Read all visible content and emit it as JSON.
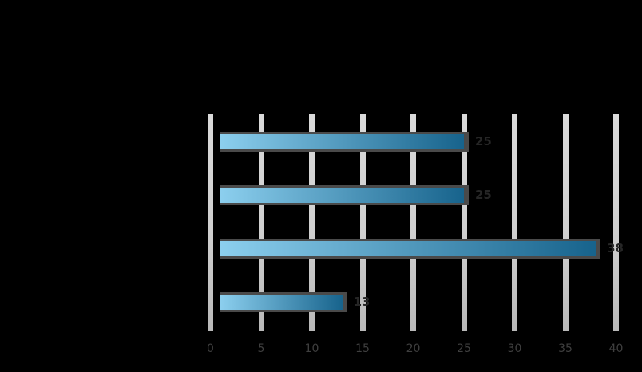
{
  "chart_data": {
    "type": "bar",
    "orientation": "horizontal",
    "values": [
      25,
      25,
      38,
      13
    ],
    "bar_labels": [
      "25",
      "25",
      "38",
      "13"
    ],
    "x_ticks": [
      0,
      5,
      10,
      15,
      20,
      25,
      30,
      35,
      40
    ],
    "xlim": [
      0,
      40
    ],
    "grid": true,
    "legend_position": "none",
    "colors": {
      "background": "#000000",
      "gridline": "#cfcfcf",
      "tick_text": "#3f3f3f",
      "bar_gradient_start": "#8ccfee",
      "bar_gradient_end": "#17638c",
      "bar_border": "#4a4a4a",
      "bar_label_text": "#262626"
    }
  }
}
